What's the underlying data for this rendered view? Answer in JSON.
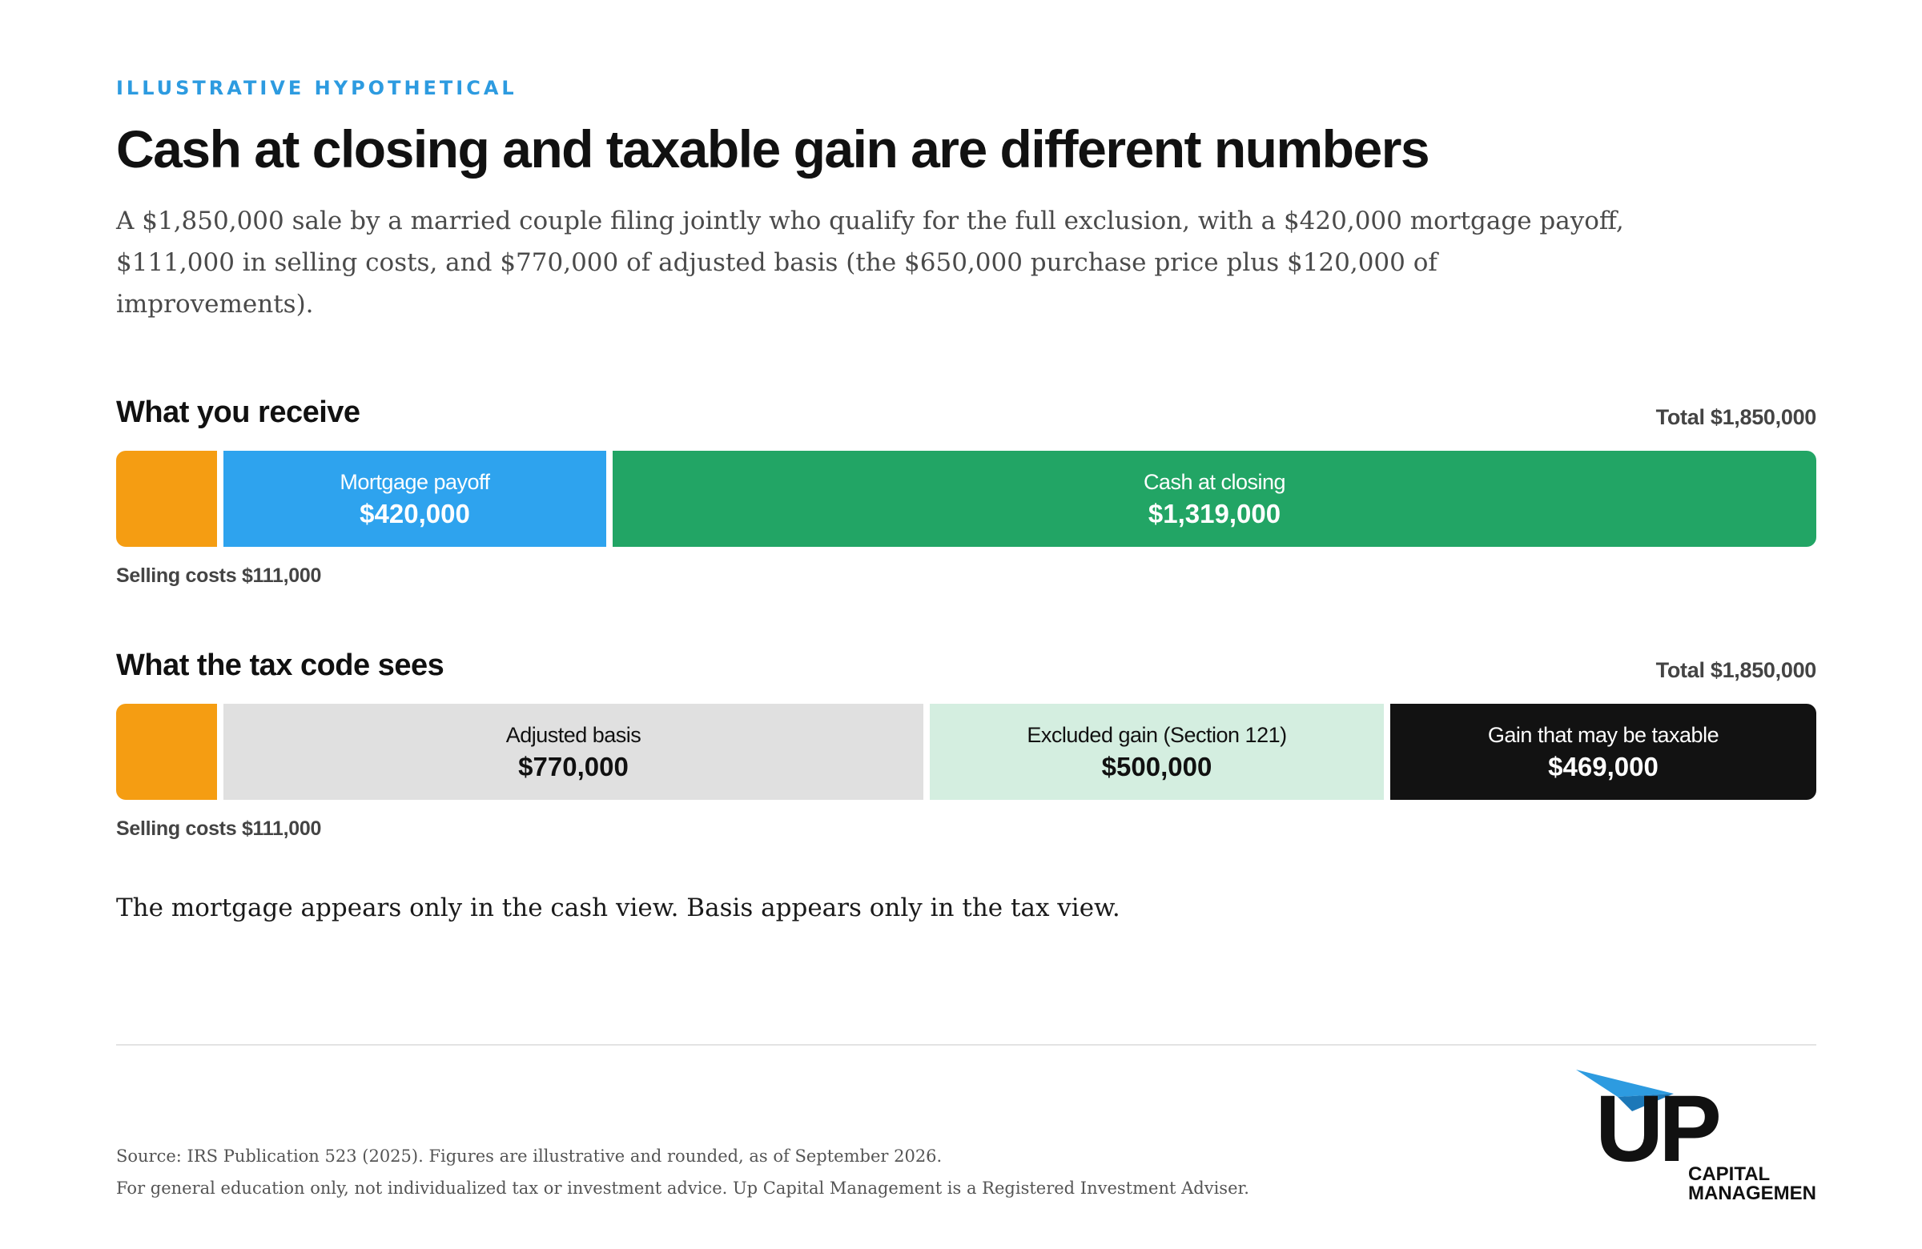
{
  "eyebrow": "ILLUSTRATIVE HYPOTHETICAL",
  "title": "Cash at closing and taxable gain are different numbers",
  "subtitle": "A $1,850,000 sale by a married couple filing jointly who qualify for the full exclusion, with a $420,000 mortgage payoff, $111,000 in selling costs, and $770,000 of adjusted basis (the $650,000 purchase price plus $120,000 of improvements).",
  "chart_data": [
    {
      "type": "bar",
      "orientation": "horizontal-stacked",
      "title": "What you receive",
      "total_label": "Total $1,850,000",
      "total": 1850000,
      "segments": [
        {
          "label": "",
          "value": 111000,
          "value_label": "",
          "color": "#f59d12"
        },
        {
          "label": "Mortgage payoff",
          "value": 420000,
          "value_label": "$420,000",
          "color": "#2ea3ee",
          "text_color": "#ffffff"
        },
        {
          "label": "Cash at closing",
          "value": 1319000,
          "value_label": "$1,319,000",
          "color": "#22a565",
          "text_color": "#ffffff"
        }
      ],
      "note": "Selling costs $111,000"
    },
    {
      "type": "bar",
      "orientation": "horizontal-stacked",
      "title": "What the tax code sees",
      "total_label": "Total $1,850,000",
      "total": 1850000,
      "segments": [
        {
          "label": "",
          "value": 111000,
          "value_label": "",
          "color": "#f59d12"
        },
        {
          "label": "Adjusted basis",
          "value": 770000,
          "value_label": "$770,000",
          "color": "#e0e0e0",
          "text_color": "#111111"
        },
        {
          "label": "Excluded gain (Section 121)",
          "value": 500000,
          "value_label": "$500,000",
          "color": "#d4eee0",
          "text_color": "#111111"
        },
        {
          "label": "Gain that may be taxable",
          "value": 469000,
          "value_label": "$469,000",
          "color": "#121212",
          "text_color": "#ffffff"
        }
      ],
      "note": "Selling costs $111,000"
    }
  ],
  "takeaway": "The mortgage appears only in the cash view. Basis appears only in the tax view.",
  "footer": {
    "source": "Source: IRS Publication 523 (2025). Figures are illustrative and rounded, as of September 2026.",
    "disclaimer": "For general education only, not individualized tax or investment advice. Up Capital Management is a Registered Investment Adviser."
  },
  "logo": {
    "name": "Up Capital Management logo",
    "line1": "CAPITAL",
    "line2": "MANAGEMENT",
    "accent": "#2d9be0",
    "letters": "UP"
  }
}
